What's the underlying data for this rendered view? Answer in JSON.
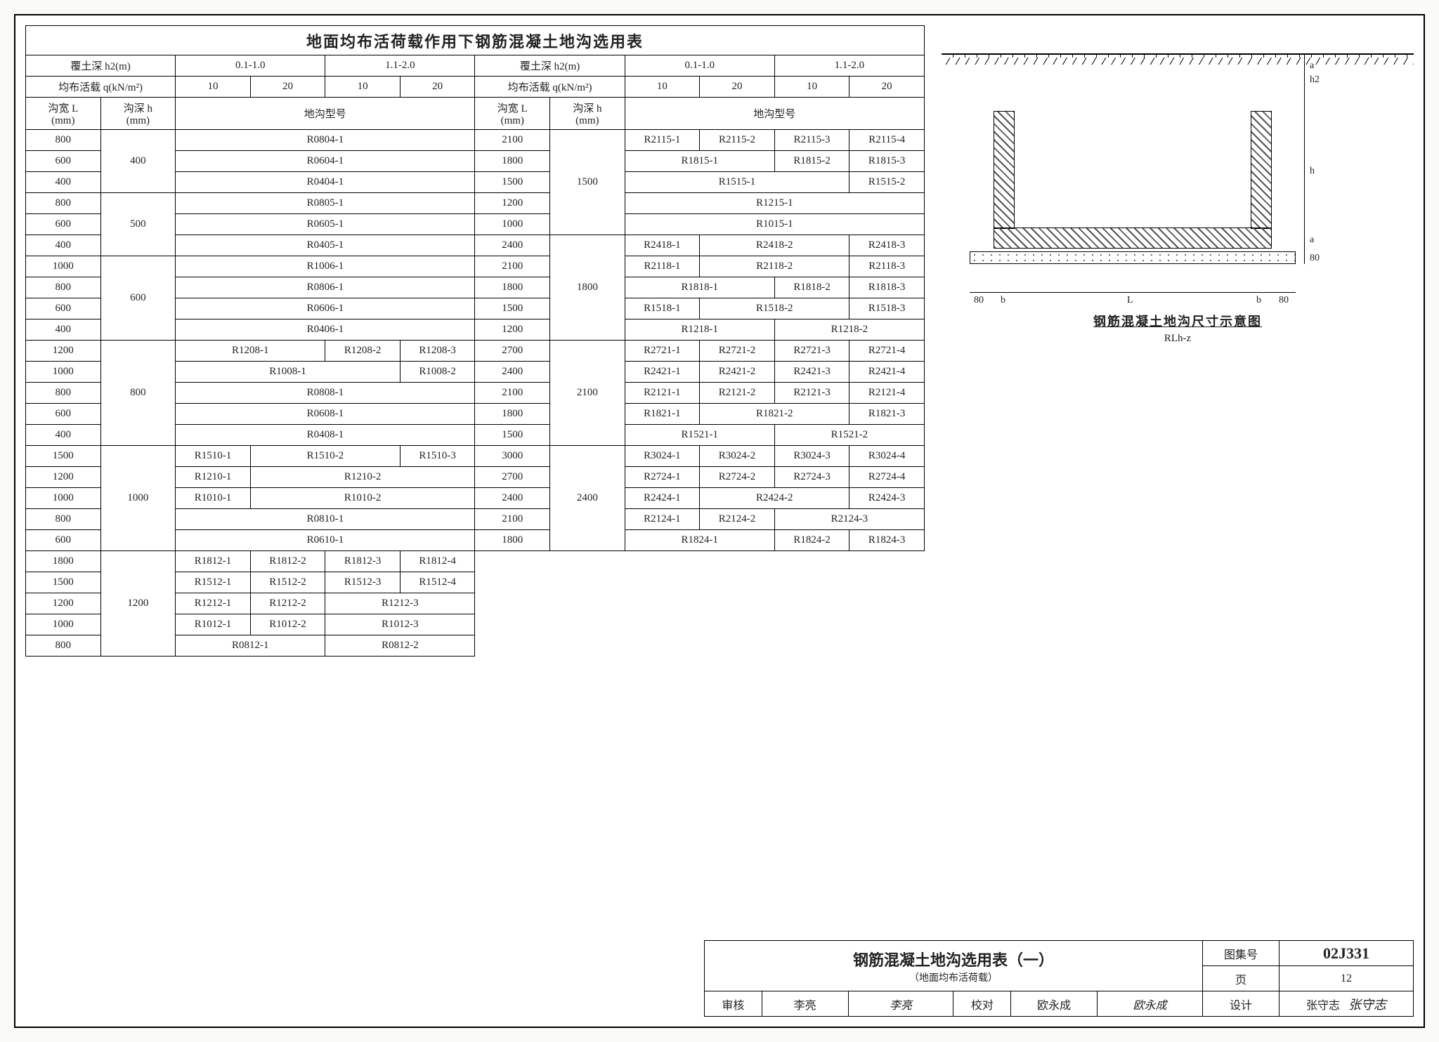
{
  "table_title": "地面均布活荷载作用下钢筋混凝土地沟选用表",
  "left": {
    "cover_depth_label": "覆土深 h2(m)",
    "cover_depth_ranges": [
      "0.1-1.0",
      "1.1-2.0"
    ],
    "liveload_label": "均布活载 q(kN/m²)",
    "liveload_values": [
      "10",
      "20",
      "10",
      "20"
    ],
    "width_label": "沟宽 L\n(mm)",
    "depth_label": "沟深 h\n(mm)",
    "type_label": "地沟型号",
    "groups": [
      {
        "h": "400",
        "rows": [
          {
            "L": "800",
            "cells": [
              {
                "t": "R0804-1",
                "span": 4
              }
            ]
          },
          {
            "L": "600",
            "cells": [
              {
                "t": "R0604-1",
                "span": 4
              }
            ]
          },
          {
            "L": "400",
            "cells": [
              {
                "t": "R0404-1",
                "span": 4
              }
            ]
          }
        ]
      },
      {
        "h": "500",
        "rows": [
          {
            "L": "800",
            "cells": [
              {
                "t": "R0805-1",
                "span": 4
              }
            ]
          },
          {
            "L": "600",
            "cells": [
              {
                "t": "R0605-1",
                "span": 4
              }
            ]
          },
          {
            "L": "400",
            "cells": [
              {
                "t": "R0405-1",
                "span": 4
              }
            ]
          }
        ]
      },
      {
        "h": "600",
        "rows": [
          {
            "L": "1000",
            "cells": [
              {
                "t": "R1006-1",
                "span": 4
              }
            ]
          },
          {
            "L": "800",
            "cells": [
              {
                "t": "R0806-1",
                "span": 4
              }
            ]
          },
          {
            "L": "600",
            "cells": [
              {
                "t": "R0606-1",
                "span": 4
              }
            ]
          },
          {
            "L": "400",
            "cells": [
              {
                "t": "R0406-1",
                "span": 4
              }
            ]
          }
        ]
      },
      {
        "h": "800",
        "rows": [
          {
            "L": "1200",
            "cells": [
              {
                "t": "R1208-1",
                "span": 2
              },
              {
                "t": "R1208-2",
                "span": 1
              },
              {
                "t": "R1208-3",
                "span": 1
              }
            ]
          },
          {
            "L": "1000",
            "cells": [
              {
                "t": "R1008-1",
                "span": 3
              },
              {
                "t": "R1008-2",
                "span": 1
              }
            ]
          },
          {
            "L": "800",
            "cells": [
              {
                "t": "R0808-1",
                "span": 4
              }
            ]
          },
          {
            "L": "600",
            "cells": [
              {
                "t": "R0608-1",
                "span": 4
              }
            ]
          },
          {
            "L": "400",
            "cells": [
              {
                "t": "R0408-1",
                "span": 4
              }
            ]
          }
        ]
      },
      {
        "h": "1000",
        "rows": [
          {
            "L": "1500",
            "cells": [
              {
                "t": "R1510-1",
                "span": 1
              },
              {
                "t": "R1510-2",
                "span": 2
              },
              {
                "t": "R1510-3",
                "span": 1
              }
            ]
          },
          {
            "L": "1200",
            "cells": [
              {
                "t": "R1210-1",
                "span": 1
              },
              {
                "t": "R1210-2",
                "span": 3
              }
            ]
          },
          {
            "L": "1000",
            "cells": [
              {
                "t": "R1010-1",
                "span": 1
              },
              {
                "t": "R1010-2",
                "span": 3
              }
            ]
          },
          {
            "L": "800",
            "cells": [
              {
                "t": "R0810-1",
                "span": 4
              }
            ]
          },
          {
            "L": "600",
            "cells": [
              {
                "t": "R0610-1",
                "span": 4
              }
            ]
          }
        ]
      },
      {
        "h": "1200",
        "rows": [
          {
            "L": "1800",
            "cells": [
              {
                "t": "R1812-1",
                "span": 1
              },
              {
                "t": "R1812-2",
                "span": 1
              },
              {
                "t": "R1812-3",
                "span": 1
              },
              {
                "t": "R1812-4",
                "span": 1
              }
            ]
          },
          {
            "L": "1500",
            "cells": [
              {
                "t": "R1512-1",
                "span": 1
              },
              {
                "t": "R1512-2",
                "span": 1
              },
              {
                "t": "R1512-3",
                "span": 1
              },
              {
                "t": "R1512-4",
                "span": 1
              }
            ]
          },
          {
            "L": "1200",
            "cells": [
              {
                "t": "R1212-1",
                "span": 1
              },
              {
                "t": "R1212-2",
                "span": 1
              },
              {
                "t": "R1212-3",
                "span": 2
              }
            ]
          },
          {
            "L": "1000",
            "cells": [
              {
                "t": "R1012-1",
                "span": 1
              },
              {
                "t": "R1012-2",
                "span": 1
              },
              {
                "t": "R1012-3",
                "span": 2
              }
            ]
          },
          {
            "L": "800",
            "cells": [
              {
                "t": "R0812-1",
                "span": 2
              },
              {
                "t": "R0812-2",
                "span": 2
              }
            ]
          }
        ]
      }
    ]
  },
  "right": {
    "cover_depth_label": "覆土深 h2(m)",
    "cover_depth_ranges": [
      "0.1-1.0",
      "1.1-2.0"
    ],
    "liveload_label": "均布活载 q(kN/m²)",
    "liveload_values": [
      "10",
      "20",
      "10",
      "20"
    ],
    "width_label": "沟宽 L\n(mm)",
    "depth_label": "沟深 h\n(mm)",
    "type_label": "地沟型号",
    "groups": [
      {
        "h": "1500",
        "rows": [
          {
            "L": "2100",
            "cells": [
              {
                "t": "R2115-1",
                "span": 1
              },
              {
                "t": "R2115-2",
                "span": 1
              },
              {
                "t": "R2115-3",
                "span": 1
              },
              {
                "t": "R2115-4",
                "span": 1
              }
            ]
          },
          {
            "L": "1800",
            "cells": [
              {
                "t": "R1815-1",
                "span": 2
              },
              {
                "t": "R1815-2",
                "span": 1
              },
              {
                "t": "R1815-3",
                "span": 1
              }
            ]
          },
          {
            "L": "1500",
            "cells": [
              {
                "t": "R1515-1",
                "span": 3
              },
              {
                "t": "R1515-2",
                "span": 1
              }
            ]
          },
          {
            "L": "1200",
            "cells": [
              {
                "t": "R1215-1",
                "span": 4
              }
            ]
          },
          {
            "L": "1000",
            "cells": [
              {
                "t": "R1015-1",
                "span": 4
              }
            ]
          }
        ]
      },
      {
        "h": "1800",
        "rows": [
          {
            "L": "2400",
            "cells": [
              {
                "t": "R2418-1",
                "span": 1
              },
              {
                "t": "R2418-2",
                "span": 2
              },
              {
                "t": "R2418-3",
                "span": 1
              }
            ]
          },
          {
            "L": "2100",
            "cells": [
              {
                "t": "R2118-1",
                "span": 1
              },
              {
                "t": "R2118-2",
                "span": 2
              },
              {
                "t": "R2118-3",
                "span": 1
              }
            ]
          },
          {
            "L": "1800",
            "cells": [
              {
                "t": "R1818-1",
                "span": 2
              },
              {
                "t": "R1818-2",
                "span": 1
              },
              {
                "t": "R1818-3",
                "span": 1
              }
            ]
          },
          {
            "L": "1500",
            "cells": [
              {
                "t": "R1518-1",
                "span": 1
              },
              {
                "t": "R1518-2",
                "span": 2
              },
              {
                "t": "R1518-3",
                "span": 1
              }
            ]
          },
          {
            "L": "1200",
            "cells": [
              {
                "t": "R1218-1",
                "span": 2
              },
              {
                "t": "R1218-2",
                "span": 2
              }
            ]
          }
        ]
      },
      {
        "h": "2100",
        "rows": [
          {
            "L": "2700",
            "cells": [
              {
                "t": "R2721-1",
                "span": 1
              },
              {
                "t": "R2721-2",
                "span": 1
              },
              {
                "t": "R2721-3",
                "span": 1
              },
              {
                "t": "R2721-4",
                "span": 1
              }
            ]
          },
          {
            "L": "2400",
            "cells": [
              {
                "t": "R2421-1",
                "span": 1
              },
              {
                "t": "R2421-2",
                "span": 1
              },
              {
                "t": "R2421-3",
                "span": 1
              },
              {
                "t": "R2421-4",
                "span": 1
              }
            ]
          },
          {
            "L": "2100",
            "cells": [
              {
                "t": "R2121-1",
                "span": 1
              },
              {
                "t": "R2121-2",
                "span": 1
              },
              {
                "t": "R2121-3",
                "span": 1
              },
              {
                "t": "R2121-4",
                "span": 1
              }
            ]
          },
          {
            "L": "1800",
            "cells": [
              {
                "t": "R1821-1",
                "span": 1
              },
              {
                "t": "R1821-2",
                "span": 2
              },
              {
                "t": "R1821-3",
                "span": 1
              }
            ]
          },
          {
            "L": "1500",
            "cells": [
              {
                "t": "R1521-1",
                "span": 2
              },
              {
                "t": "R1521-2",
                "span": 2
              }
            ]
          }
        ]
      },
      {
        "h": "2400",
        "rows": [
          {
            "L": "3000",
            "cells": [
              {
                "t": "R3024-1",
                "span": 1
              },
              {
                "t": "R3024-2",
                "span": 1
              },
              {
                "t": "R3024-3",
                "span": 1
              },
              {
                "t": "R3024-4",
                "span": 1
              }
            ]
          },
          {
            "L": "2700",
            "cells": [
              {
                "t": "R2724-1",
                "span": 1
              },
              {
                "t": "R2724-2",
                "span": 1
              },
              {
                "t": "R2724-3",
                "span": 1
              },
              {
                "t": "R2724-4",
                "span": 1
              }
            ]
          },
          {
            "L": "2400",
            "cells": [
              {
                "t": "R2424-1",
                "span": 1
              },
              {
                "t": "R2424-2",
                "span": 2
              },
              {
                "t": "R2424-3",
                "span": 1
              }
            ]
          },
          {
            "L": "2100",
            "cells": [
              {
                "t": "R2124-1",
                "span": 1
              },
              {
                "t": "R2124-2",
                "span": 1
              },
              {
                "t": "R2124-3",
                "span": 2
              }
            ]
          },
          {
            "L": "1800",
            "cells": [
              {
                "t": "R1824-1",
                "span": 2
              },
              {
                "t": "R1824-2",
                "span": 1
              },
              {
                "t": "R1824-3",
                "span": 1
              }
            ]
          }
        ]
      }
    ]
  },
  "diagram": {
    "caption": "钢筋混凝土地沟尺寸示意图",
    "subcaption": "RLh-z",
    "dims": {
      "a": "a",
      "h2": "h2",
      "h": "h",
      "a2": "a",
      "eighty": "80",
      "b": "b",
      "L": "L",
      "eighty_l": "80",
      "eighty_r": "80"
    }
  },
  "titleblock": {
    "title": "钢筋混凝土地沟选用表（一）",
    "subtitle": "（地面均布活荷载）",
    "atlas_label": "图集号",
    "atlas_no": "02J331",
    "page_label": "页",
    "page_no": "12",
    "check_label": "审核",
    "check_name": "李亮",
    "check_sig": "李亮",
    "proof_label": "校对",
    "proof_name": "欧永成",
    "proof_sig": "欧永成",
    "design_label": "设计",
    "design_name": "张守志",
    "design_sig": "张守志"
  }
}
